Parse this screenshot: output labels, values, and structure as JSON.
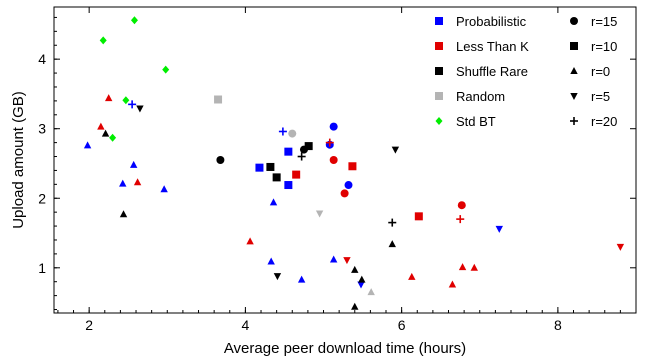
{
  "chart_data": {
    "type": "scatter",
    "title": "",
    "xlabel": "Average peer download time (hours)",
    "ylabel": "Upload amount (GB)",
    "xlim": [
      1.55,
      9.0
    ],
    "ylim": [
      0.35,
      4.75
    ],
    "xticks": [
      "2",
      "4",
      "6",
      "8"
    ],
    "yticks": [
      "1",
      "2",
      "3",
      "4"
    ],
    "grid": false,
    "legend_position": "top-right",
    "legend_algorithms": [
      {
        "name": "Probabilistic",
        "color": "#0000ff"
      },
      {
        "name": "Less Than K",
        "color": "#e00000"
      },
      {
        "name": "Shuffle Rare",
        "color": "#000000"
      },
      {
        "name": "Random",
        "color": "#b4b4b4"
      },
      {
        "name": "Std BT",
        "color": "#00ee00"
      }
    ],
    "legend_markers": [
      {
        "name": "r=15",
        "marker": "circle"
      },
      {
        "name": "r=10",
        "marker": "square"
      },
      {
        "name": "r=0",
        "marker": "triangle-up"
      },
      {
        "name": "r=5",
        "marker": "triangle-down"
      },
      {
        "name": "r=20",
        "marker": "plus"
      }
    ],
    "series": [
      {
        "name": "Probabilistic",
        "color": "#0000ff",
        "points": [
          {
            "x": 5.13,
            "y": 3.03,
            "marker": "circle"
          },
          {
            "x": 5.08,
            "y": 2.77,
            "marker": "circle"
          },
          {
            "x": 5.32,
            "y": 2.19,
            "marker": "circle"
          },
          {
            "x": 4.55,
            "y": 2.67,
            "marker": "square"
          },
          {
            "x": 4.18,
            "y": 2.44,
            "marker": "square"
          },
          {
            "x": 4.55,
            "y": 2.19,
            "marker": "square"
          },
          {
            "x": 1.98,
            "y": 2.76,
            "marker": "triangle-up"
          },
          {
            "x": 2.57,
            "y": 2.48,
            "marker": "triangle-up"
          },
          {
            "x": 2.43,
            "y": 2.21,
            "marker": "triangle-up"
          },
          {
            "x": 2.96,
            "y": 2.13,
            "marker": "triangle-up"
          },
          {
            "x": 4.36,
            "y": 1.94,
            "marker": "triangle-up"
          },
          {
            "x": 4.33,
            "y": 1.09,
            "marker": "triangle-up"
          },
          {
            "x": 5.13,
            "y": 1.12,
            "marker": "triangle-up"
          },
          {
            "x": 4.72,
            "y": 0.83,
            "marker": "triangle-up"
          },
          {
            "x": 7.25,
            "y": 1.56,
            "marker": "triangle-down"
          },
          {
            "x": 5.48,
            "y": 0.76,
            "marker": "triangle-down"
          },
          {
            "x": 2.55,
            "y": 3.35,
            "marker": "plus"
          },
          {
            "x": 4.48,
            "y": 2.96,
            "marker": "plus"
          }
        ]
      },
      {
        "name": "Less Than K",
        "color": "#e00000",
        "points": [
          {
            "x": 5.13,
            "y": 2.55,
            "marker": "circle"
          },
          {
            "x": 5.27,
            "y": 2.07,
            "marker": "circle"
          },
          {
            "x": 6.77,
            "y": 1.9,
            "marker": "circle"
          },
          {
            "x": 4.65,
            "y": 2.34,
            "marker": "square"
          },
          {
            "x": 5.37,
            "y": 2.46,
            "marker": "square"
          },
          {
            "x": 6.22,
            "y": 1.74,
            "marker": "square"
          },
          {
            "x": 2.25,
            "y": 3.44,
            "marker": "triangle-up"
          },
          {
            "x": 2.15,
            "y": 3.03,
            "marker": "triangle-up"
          },
          {
            "x": 2.62,
            "y": 2.23,
            "marker": "triangle-up"
          },
          {
            "x": 4.06,
            "y": 1.38,
            "marker": "triangle-up"
          },
          {
            "x": 6.13,
            "y": 0.87,
            "marker": "triangle-up"
          },
          {
            "x": 6.65,
            "y": 0.76,
            "marker": "triangle-up"
          },
          {
            "x": 6.78,
            "y": 1.01,
            "marker": "triangle-up"
          },
          {
            "x": 6.93,
            "y": 1.0,
            "marker": "triangle-up"
          },
          {
            "x": 5.3,
            "y": 1.11,
            "marker": "triangle-down"
          },
          {
            "x": 8.8,
            "y": 1.3,
            "marker": "triangle-down"
          },
          {
            "x": 5.08,
            "y": 2.8,
            "marker": "plus"
          },
          {
            "x": 6.75,
            "y": 1.7,
            "marker": "plus"
          }
        ]
      },
      {
        "name": "Shuffle Rare",
        "color": "#000000",
        "points": [
          {
            "x": 3.68,
            "y": 2.55,
            "marker": "circle"
          },
          {
            "x": 4.75,
            "y": 2.7,
            "marker": "circle"
          },
          {
            "x": 4.32,
            "y": 2.45,
            "marker": "square"
          },
          {
            "x": 4.4,
            "y": 2.3,
            "marker": "square"
          },
          {
            "x": 4.81,
            "y": 2.75,
            "marker": "square"
          },
          {
            "x": 2.21,
            "y": 2.93,
            "marker": "triangle-up"
          },
          {
            "x": 2.44,
            "y": 1.77,
            "marker": "triangle-up"
          },
          {
            "x": 5.4,
            "y": 0.97,
            "marker": "triangle-up"
          },
          {
            "x": 5.88,
            "y": 1.34,
            "marker": "triangle-up"
          },
          {
            "x": 5.49,
            "y": 0.83,
            "marker": "triangle-up"
          },
          {
            "x": 5.4,
            "y": 0.44,
            "marker": "triangle-up"
          },
          {
            "x": 2.65,
            "y": 3.29,
            "marker": "triangle-down"
          },
          {
            "x": 5.92,
            "y": 2.7,
            "marker": "triangle-down"
          },
          {
            "x": 4.41,
            "y": 0.88,
            "marker": "triangle-down"
          },
          {
            "x": 4.72,
            "y": 2.6,
            "marker": "plus"
          },
          {
            "x": 5.88,
            "y": 1.65,
            "marker": "plus"
          }
        ]
      },
      {
        "name": "Random",
        "color": "#b4b4b4",
        "points": [
          {
            "x": 4.6,
            "y": 2.93,
            "marker": "circle"
          },
          {
            "x": 3.65,
            "y": 3.42,
            "marker": "square"
          },
          {
            "x": 5.61,
            "y": 0.65,
            "marker": "triangle-up"
          },
          {
            "x": 4.95,
            "y": 1.78,
            "marker": "triangle-down"
          }
        ]
      },
      {
        "name": "Std BT",
        "color": "#00ee00",
        "points": [
          {
            "x": 2.58,
            "y": 4.56,
            "marker": "diamond"
          },
          {
            "x": 2.18,
            "y": 4.27,
            "marker": "diamond"
          },
          {
            "x": 2.98,
            "y": 3.85,
            "marker": "diamond"
          },
          {
            "x": 2.47,
            "y": 3.41,
            "marker": "diamond"
          },
          {
            "x": 2.3,
            "y": 2.87,
            "marker": "diamond"
          }
        ]
      }
    ]
  }
}
